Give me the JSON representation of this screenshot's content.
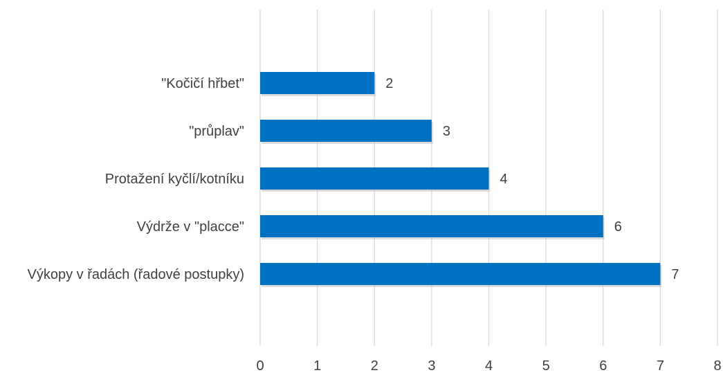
{
  "chart_data": {
    "type": "bar",
    "orientation": "horizontal",
    "categories": [
      "\"Kočičí hřbet\"",
      "\"průplav\"",
      "Protažení kyčlí/kotníku",
      "Výdrže v \"placce\"",
      "Výkopy v řadách (řadové postupky)"
    ],
    "values": [
      2,
      3,
      4,
      6,
      7
    ],
    "data_labels": [
      "2",
      "3",
      "4",
      "6",
      "7"
    ],
    "xlim": [
      0,
      8
    ],
    "x_ticks": [
      "0",
      "1",
      "2",
      "3",
      "4",
      "5",
      "6",
      "7",
      "8"
    ],
    "grid": true,
    "legend": false,
    "bar_color": "#0070C0"
  }
}
